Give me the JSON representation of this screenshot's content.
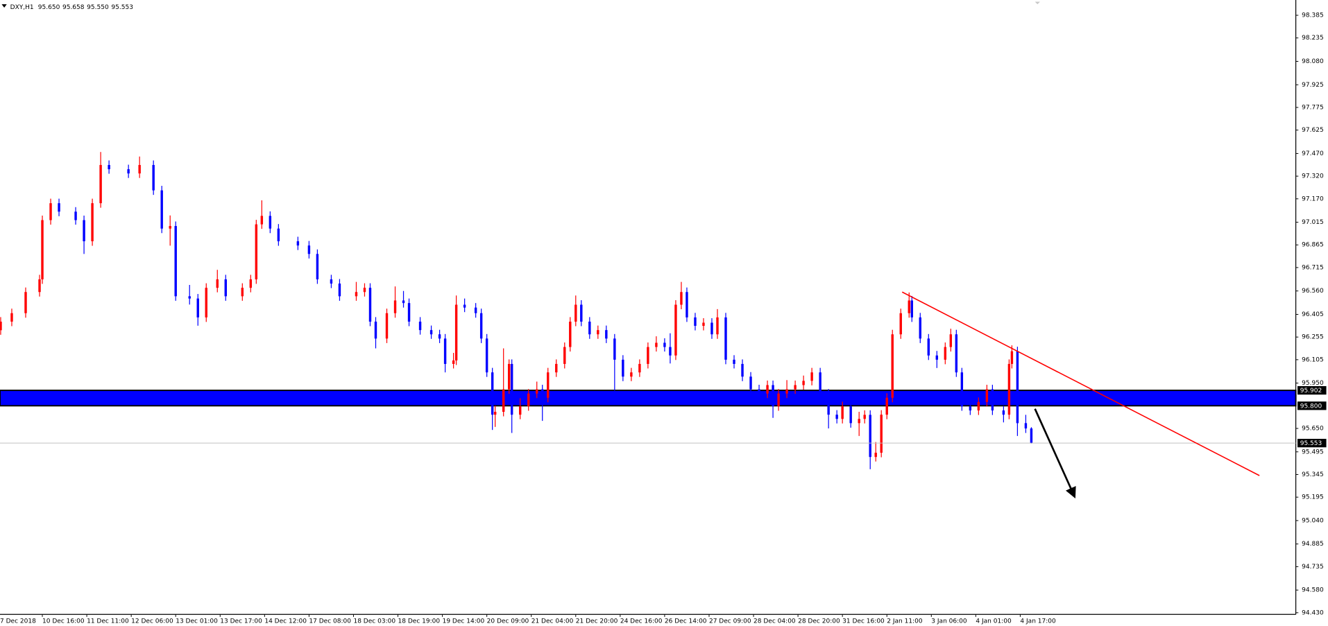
{
  "chart_data": {
    "type": "candlestick",
    "quote": {
      "symbol": "DXY,H1",
      "values": [
        95.65,
        95.658,
        95.55,
        95.553
      ],
      "value_labels": [
        "95.650",
        "95.658",
        "95.550",
        "95.553"
      ]
    },
    "xlim": [
      0.76,
      467.2
    ],
    "ylim": [
      94.419,
      98.486
    ],
    "xticks": [
      {
        "value": 0,
        "label": "7 Dec 2018"
      },
      {
        "value": 16,
        "label": "10 Dec 16:00"
      },
      {
        "value": 32,
        "label": "11 Dec 11:00"
      },
      {
        "value": 48,
        "label": "12 Dec 06:00"
      },
      {
        "value": 64,
        "label": "13 Dec 01:00"
      },
      {
        "value": 80,
        "label": "13 Dec 17:00"
      },
      {
        "value": 96,
        "label": "14 Dec 12:00"
      },
      {
        "value": 112,
        "label": "17 Dec 08:00"
      },
      {
        "value": 128,
        "label": "18 Dec 03:00"
      },
      {
        "value": 144,
        "label": "18 Dec 19:00"
      },
      {
        "value": 160,
        "label": "19 Dec 14:00"
      },
      {
        "value": 176,
        "label": "20 Dec 09:00"
      },
      {
        "value": 192,
        "label": "21 Dec 04:00"
      },
      {
        "value": 208,
        "label": "21 Dec 20:00"
      },
      {
        "value": 224,
        "label": "24 Dec 16:00"
      },
      {
        "value": 240,
        "label": "26 Dec 14:00"
      },
      {
        "value": 256,
        "label": "27 Dec 09:00"
      },
      {
        "value": 272,
        "label": "28 Dec 04:00"
      },
      {
        "value": 288,
        "label": "28 Dec 20:00"
      },
      {
        "value": 304,
        "label": "31 Dec 16:00"
      },
      {
        "value": 320,
        "label": "2 Jan 11:00"
      },
      {
        "value": 336,
        "label": "3 Jan 06:00"
      },
      {
        "value": 352,
        "label": "4 Jan 01:00"
      },
      {
        "value": 368,
        "label": "4 Jan 17:00"
      }
    ],
    "yticks": [
      98.385,
      98.235,
      {
        "value": 98.08,
        "label": "98.080"
      },
      97.925,
      97.775,
      97.625,
      {
        "value": 97.47,
        "label": "97.470"
      },
      {
        "value": 97.32,
        "label": "97.320"
      },
      {
        "value": 97.17,
        "label": "97.170"
      },
      97.015,
      96.865,
      96.715,
      {
        "value": 96.56,
        "label": "96.560"
      },
      96.405,
      96.255,
      96.105,
      {
        "value": 95.95,
        "label": "95.950"
      },
      {
        "value": 95.65,
        "label": "95.650"
      },
      95.495,
      95.345,
      95.195,
      {
        "value": 95.04,
        "label": "95.040"
      },
      94.885,
      94.735,
      {
        "value": 94.58,
        "label": "94.580"
      },
      {
        "value": 94.43,
        "label": "94.430"
      }
    ],
    "up_color": "#ff0000",
    "down_color": "#0000ff",
    "candles": [
      [
        1,
        96.3,
        96.387,
        96.27,
        96.357
      ],
      [
        5,
        96.357,
        96.443,
        96.327,
        96.413
      ],
      [
        10,
        96.413,
        96.583,
        96.383,
        96.553
      ],
      [
        15,
        96.553,
        96.667,
        96.523,
        96.637
      ],
      [
        16,
        96.637,
        97.059,
        96.607,
        97.029
      ],
      [
        19,
        97.029,
        97.171,
        96.999,
        97.141
      ],
      [
        22,
        97.141,
        97.171,
        97.055,
        97.085
      ],
      [
        28,
        97.085,
        97.115,
        96.999,
        97.029
      ],
      [
        31,
        97.029,
        97.059,
        96.805,
        96.889
      ],
      [
        34,
        96.889,
        97.171,
        96.859,
        97.141
      ],
      [
        37,
        97.141,
        97.48,
        97.111,
        97.394
      ],
      [
        40,
        97.394,
        97.424,
        97.336,
        97.366
      ],
      [
        47,
        97.366,
        97.396,
        97.308,
        97.338
      ],
      [
        51,
        97.338,
        97.45,
        97.308,
        97.394
      ],
      [
        56,
        97.394,
        97.424,
        97.196,
        97.226
      ],
      [
        59,
        97.226,
        97.256,
        96.943,
        96.973
      ],
      [
        62,
        96.973,
        97.06,
        96.86,
        96.99
      ],
      [
        64,
        96.99,
        97.02,
        96.495,
        96.525
      ],
      [
        69,
        96.525,
        96.6,
        96.47,
        96.51
      ],
      [
        72,
        96.51,
        96.54,
        96.33,
        96.385
      ],
      [
        75,
        96.385,
        96.611,
        96.355,
        96.581
      ],
      [
        79,
        96.581,
        96.7,
        96.551,
        96.637
      ],
      [
        82,
        96.637,
        96.667,
        96.495,
        96.525
      ],
      [
        88,
        96.525,
        96.611,
        96.495,
        96.581
      ],
      [
        91,
        96.581,
        96.667,
        96.551,
        96.637
      ],
      [
        93,
        96.637,
        97.031,
        96.607,
        97.001
      ],
      [
        95,
        97.001,
        97.16,
        96.971,
        97.057
      ],
      [
        98,
        97.057,
        97.087,
        96.943,
        96.973
      ],
      [
        101,
        96.973,
        97.003,
        96.859,
        96.889
      ],
      [
        108,
        96.889,
        96.919,
        96.831,
        96.861
      ],
      [
        112,
        96.861,
        96.891,
        96.775,
        96.805
      ],
      [
        115,
        96.805,
        96.835,
        96.607,
        96.637
      ],
      [
        120,
        96.637,
        96.667,
        96.579,
        96.609
      ],
      [
        123,
        96.609,
        96.639,
        96.495,
        96.525
      ],
      [
        129,
        96.525,
        96.62,
        96.495,
        96.553
      ],
      [
        132,
        96.553,
        96.611,
        96.523,
        96.581
      ],
      [
        134,
        96.581,
        96.611,
        96.327,
        96.357
      ],
      [
        136,
        96.357,
        96.387,
        96.18,
        96.245
      ],
      [
        140,
        96.245,
        96.443,
        96.215,
        96.413
      ],
      [
        143,
        96.413,
        96.59,
        96.383,
        96.497
      ],
      [
        146,
        96.497,
        96.56,
        96.45,
        96.48
      ],
      [
        148,
        96.48,
        96.51,
        96.327,
        96.357
      ],
      [
        152,
        96.357,
        96.387,
        96.271,
        96.301
      ],
      [
        156,
        96.301,
        96.331,
        96.243,
        96.273
      ],
      [
        159,
        96.273,
        96.303,
        96.215,
        96.245
      ],
      [
        161,
        96.245,
        96.275,
        96.021,
        96.077
      ],
      [
        164,
        96.077,
        96.15,
        96.047,
        96.1
      ],
      [
        165,
        96.1,
        96.53,
        96.07,
        96.469
      ],
      [
        168,
        96.469,
        96.51,
        96.42,
        96.45
      ],
      [
        172,
        96.45,
        96.48,
        96.383,
        96.413
      ],
      [
        174,
        96.413,
        96.443,
        96.215,
        96.245
      ],
      [
        176,
        96.245,
        96.275,
        95.991,
        96.021
      ],
      [
        178,
        96.021,
        96.051,
        95.64,
        95.741
      ],
      [
        179,
        95.741,
        95.8,
        95.66,
        95.76
      ],
      [
        182,
        95.76,
        96.18,
        95.73,
        95.909
      ],
      [
        184,
        95.909,
        96.107,
        95.879,
        96.077
      ],
      [
        185,
        96.077,
        96.107,
        95.62,
        95.741
      ],
      [
        188,
        95.741,
        95.85,
        95.711,
        95.797
      ],
      [
        191,
        95.797,
        95.911,
        95.767,
        95.881
      ],
      [
        194,
        95.881,
        95.96,
        95.851,
        95.909
      ],
      [
        196,
        95.909,
        95.939,
        95.7,
        95.853
      ],
      [
        198,
        95.853,
        96.051,
        95.823,
        96.021
      ],
      [
        201,
        96.021,
        96.107,
        95.991,
        96.077
      ],
      [
        204,
        96.077,
        96.219,
        96.047,
        96.189
      ],
      [
        206,
        96.189,
        96.387,
        96.159,
        96.357
      ],
      [
        208,
        96.357,
        96.53,
        96.327,
        96.469
      ],
      [
        210,
        96.469,
        96.499,
        96.327,
        96.357
      ],
      [
        213,
        96.357,
        96.387,
        96.243,
        96.273
      ],
      [
        216,
        96.273,
        96.331,
        96.243,
        96.301
      ],
      [
        219,
        96.301,
        96.331,
        96.215,
        96.245
      ],
      [
        222,
        96.245,
        96.275,
        95.9,
        96.105
      ],
      [
        225,
        96.105,
        96.135,
        95.963,
        95.993
      ],
      [
        228,
        95.993,
        96.051,
        95.963,
        96.021
      ],
      [
        231,
        96.021,
        96.107,
        95.991,
        96.077
      ],
      [
        234,
        96.077,
        96.219,
        96.047,
        96.189
      ],
      [
        237,
        96.189,
        96.26,
        96.159,
        96.217
      ],
      [
        240,
        96.217,
        96.247,
        96.159,
        96.189
      ],
      [
        242,
        96.189,
        96.28,
        96.08,
        96.133
      ],
      [
        244,
        96.133,
        96.499,
        96.103,
        96.469
      ],
      [
        246,
        96.469,
        96.62,
        96.439,
        96.553
      ],
      [
        248,
        96.553,
        96.583,
        96.355,
        96.385
      ],
      [
        251,
        96.385,
        96.415,
        96.299,
        96.329
      ],
      [
        254,
        96.329,
        96.38,
        96.299,
        96.35
      ],
      [
        257,
        96.35,
        96.38,
        96.243,
        96.273
      ],
      [
        259,
        96.273,
        96.44,
        96.243,
        96.385
      ],
      [
        262,
        96.385,
        96.415,
        96.075,
        96.105
      ],
      [
        265,
        96.105,
        96.135,
        96.047,
        96.077
      ],
      [
        268,
        96.077,
        96.107,
        95.963,
        95.993
      ],
      [
        271,
        95.993,
        96.023,
        95.879,
        95.909
      ],
      [
        274,
        95.909,
        95.939,
        95.851,
        95.881
      ],
      [
        277,
        95.881,
        95.967,
        95.851,
        95.937
      ],
      [
        279,
        95.937,
        95.967,
        95.72,
        95.797
      ],
      [
        281,
        95.797,
        95.911,
        95.767,
        95.881
      ],
      [
        284,
        95.881,
        95.97,
        95.851,
        95.909
      ],
      [
        287,
        95.909,
        95.967,
        95.879,
        95.937
      ],
      [
        290,
        95.937,
        96.0,
        95.907,
        95.965
      ],
      [
        293,
        95.965,
        96.051,
        95.935,
        96.021
      ],
      [
        296,
        96.021,
        96.051,
        95.851,
        95.881
      ],
      [
        299,
        95.881,
        95.911,
        95.65,
        95.741
      ],
      [
        302,
        95.741,
        95.771,
        95.683,
        95.713
      ],
      [
        304,
        95.713,
        95.827,
        95.683,
        95.797
      ],
      [
        307,
        95.797,
        95.827,
        95.655,
        95.685
      ],
      [
        310,
        95.685,
        95.76,
        95.6,
        95.713
      ],
      [
        312,
        95.713,
        95.77,
        95.683,
        95.74
      ],
      [
        314,
        95.74,
        95.77,
        95.38,
        95.461
      ],
      [
        316,
        95.461,
        95.56,
        95.431,
        95.489
      ],
      [
        318,
        95.489,
        95.771,
        95.459,
        95.741
      ],
      [
        320,
        95.741,
        95.883,
        95.711,
        95.853
      ],
      [
        322,
        95.853,
        96.303,
        95.823,
        96.273
      ],
      [
        325,
        96.273,
        96.443,
        96.243,
        96.413
      ],
      [
        328,
        96.413,
        96.55,
        96.383,
        96.497
      ],
      [
        329,
        96.497,
        96.527,
        96.355,
        96.385
      ],
      [
        332,
        96.385,
        96.415,
        96.215,
        96.245
      ],
      [
        335,
        96.245,
        96.275,
        96.103,
        96.133
      ],
      [
        338,
        96.133,
        96.163,
        96.05,
        96.105
      ],
      [
        341,
        96.105,
        96.219,
        96.075,
        96.189
      ],
      [
        343,
        96.189,
        96.31,
        96.159,
        96.273
      ],
      [
        345,
        96.273,
        96.303,
        95.991,
        96.021
      ],
      [
        347,
        96.021,
        96.051,
        95.767,
        95.797
      ],
      [
        350,
        95.797,
        95.827,
        95.739,
        95.769
      ],
      [
        353,
        95.769,
        95.855,
        95.739,
        95.825
      ],
      [
        356,
        95.825,
        95.939,
        95.795,
        95.909
      ],
      [
        358,
        95.909,
        95.939,
        95.739,
        95.769
      ],
      [
        362,
        95.769,
        95.799,
        95.69,
        95.741
      ],
      [
        364,
        95.741,
        96.107,
        95.711,
        96.077
      ],
      [
        365,
        96.077,
        96.2,
        96.047,
        96.161
      ],
      [
        367,
        96.161,
        96.191,
        95.6,
        95.685
      ],
      [
        370,
        95.685,
        95.74,
        95.62,
        95.65
      ],
      [
        372,
        95.65,
        95.658,
        95.55,
        95.553
      ]
    ],
    "zone": {
      "values": [
        95.8,
        95.902
      ],
      "value_labels": [
        "95.800",
        "95.902"
      ],
      "color": "#0000ff"
    },
    "trendline": {
      "x": [
        325.5,
        454.1
      ],
      "y": [
        96.553,
        95.338
      ],
      "color": "#ff0000"
    },
    "arrow": {
      "x": [
        373.3,
        387.3
      ],
      "y": [
        95.78,
        95.209
      ],
      "color": "#000000"
    }
  }
}
